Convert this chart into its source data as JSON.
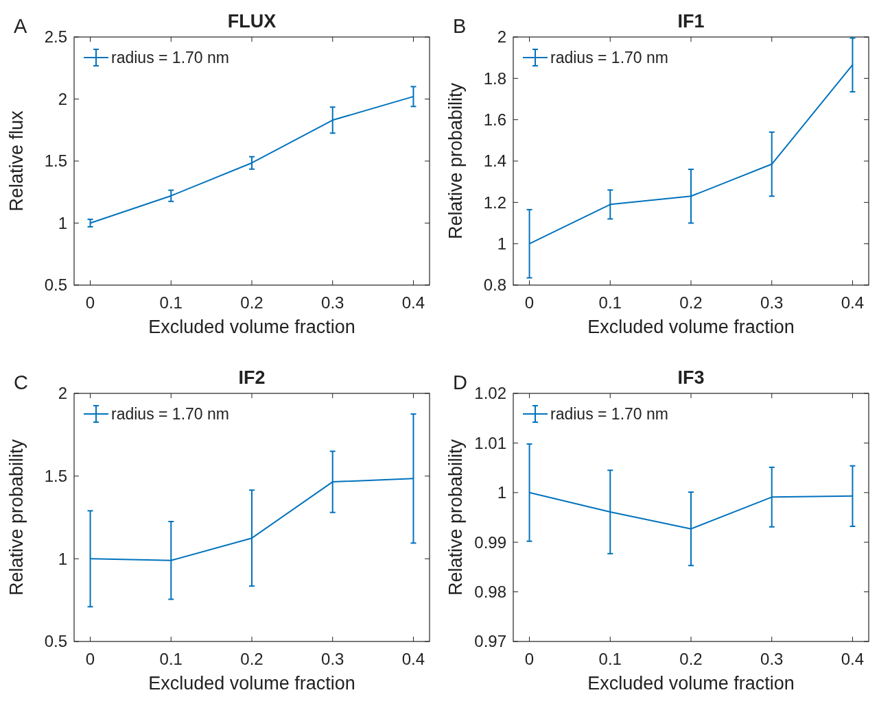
{
  "chart_data": [
    {
      "type": "line",
      "title": "FLUX",
      "xlabel": "Excluded volume fraction",
      "ylabel": "Relative flux",
      "annotations": [
        "A"
      ],
      "x": [
        0,
        0.1,
        0.2,
        0.3,
        0.4
      ],
      "xlim": [
        -0.02,
        0.42
      ],
      "xticks": [
        0,
        0.1,
        0.2,
        0.3,
        0.4
      ],
      "ylim": [
        0.5,
        2.5
      ],
      "yticks": [
        0.5,
        1,
        1.5,
        2,
        2.5
      ],
      "legend": "top left",
      "series": [
        {
          "name": "radius = 1.70 nm",
          "color": "#0072bd",
          "values": [
            1.0,
            1.22,
            1.485,
            1.83,
            2.02
          ],
          "errors": [
            0.03,
            0.045,
            0.05,
            0.105,
            0.08
          ]
        }
      ]
    },
    {
      "type": "line",
      "title": "IF1",
      "xlabel": "Excluded volume fraction",
      "ylabel": "Relative probability",
      "annotations": [
        "B"
      ],
      "x": [
        0,
        0.1,
        0.2,
        0.3,
        0.4
      ],
      "xlim": [
        -0.02,
        0.42
      ],
      "xticks": [
        0,
        0.1,
        0.2,
        0.3,
        0.4
      ],
      "ylim": [
        0.8,
        2
      ],
      "yticks": [
        0.8,
        1,
        1.2,
        1.4,
        1.6,
        1.8,
        2
      ],
      "legend": "top left",
      "series": [
        {
          "name": "radius = 1.70 nm",
          "color": "#0072bd",
          "values": [
            1.0,
            1.19,
            1.23,
            1.385,
            1.865
          ],
          "errors": [
            0.165,
            0.07,
            0.13,
            0.155,
            0.13
          ]
        }
      ]
    },
    {
      "type": "line",
      "title": "IF2",
      "xlabel": "Excluded volume fraction",
      "ylabel": "Relative probability",
      "annotations": [
        "C"
      ],
      "x": [
        0,
        0.1,
        0.2,
        0.3,
        0.4
      ],
      "xlim": [
        -0.02,
        0.42
      ],
      "xticks": [
        0,
        0.1,
        0.2,
        0.3,
        0.4
      ],
      "ylim": [
        0.5,
        2
      ],
      "yticks": [
        0.5,
        1,
        1.5,
        2
      ],
      "legend": "top left",
      "series": [
        {
          "name": "radius = 1.70 nm",
          "color": "#0072bd",
          "values": [
            1.0,
            0.99,
            1.125,
            1.465,
            1.485
          ],
          "errors": [
            0.29,
            0.235,
            0.29,
            0.185,
            0.39
          ]
        }
      ]
    },
    {
      "type": "line",
      "title": "IF3",
      "xlabel": "Excluded volume fraction",
      "ylabel": "Relative probability",
      "annotations": [
        "D"
      ],
      "x": [
        0,
        0.1,
        0.2,
        0.3,
        0.4
      ],
      "xlim": [
        -0.02,
        0.42
      ],
      "xticks": [
        0,
        0.1,
        0.2,
        0.3,
        0.4
      ],
      "ylim": [
        0.97,
        1.02
      ],
      "yticks": [
        0.97,
        0.98,
        0.99,
        1,
        1.01,
        1.02
      ],
      "legend": "top left",
      "series": [
        {
          "name": "radius = 1.70 nm",
          "color": "#0072bd",
          "values": [
            1.0,
            0.9961,
            0.9927,
            0.9991,
            0.9993
          ],
          "errors": [
            0.0098,
            0.0084,
            0.0074,
            0.006,
            0.0061
          ]
        }
      ]
    }
  ]
}
